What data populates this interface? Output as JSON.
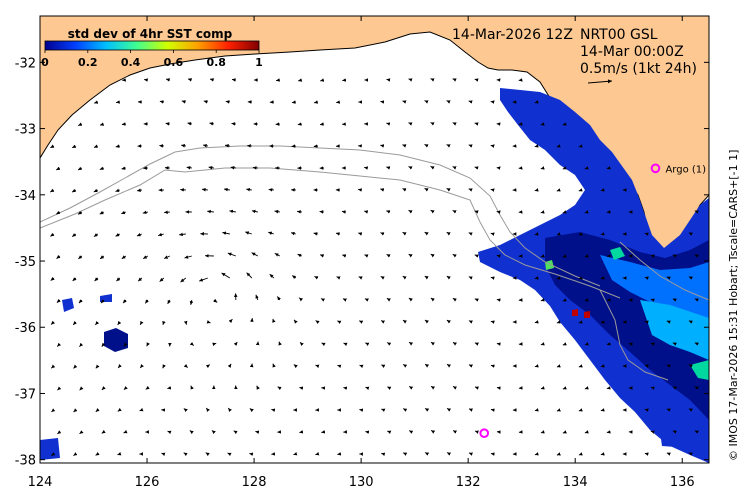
{
  "colorbar": {
    "title": "std dev of 4hr SST comp",
    "ticks": [
      "0",
      "0.2",
      "0.4",
      "0.6",
      "0.8",
      "1"
    ],
    "stops": [
      "#00008f",
      "#0040ff",
      "#00c0ff",
      "#40ff90",
      "#d0ff00",
      "#ffa000",
      "#ff2000",
      "#800000"
    ]
  },
  "header": {
    "date": "14-Mar-2026 12Z",
    "product": "NRT00 GSL",
    "time": "14-Mar 00:00Z",
    "scale": "0.5m/s (1kt 24h)"
  },
  "argo": {
    "label": "Argo (1)",
    "lon": 135.5,
    "lat": -33.6
  },
  "argo2": {
    "lon": 132.3,
    "lat": -37.6
  },
  "credit": "© IMOS 17-Mar-2026 15:31 Hobart; Tscale=CARS+[-1 1]",
  "axes": {
    "lon_range": [
      124,
      136.5
    ],
    "lat_range": [
      -38.05,
      -31.3
    ],
    "x_ticks": [
      "124",
      "126",
      "128",
      "130",
      "132",
      "134",
      "136"
    ],
    "y_ticks": [
      "-32",
      "-33",
      "-34",
      "-35",
      "-36",
      "-37",
      "-38"
    ]
  },
  "colors": {
    "land": "#fdc891",
    "ocean": "#ffffff",
    "isobath": "#9a9a9a",
    "argo": "#ff00ff"
  }
}
